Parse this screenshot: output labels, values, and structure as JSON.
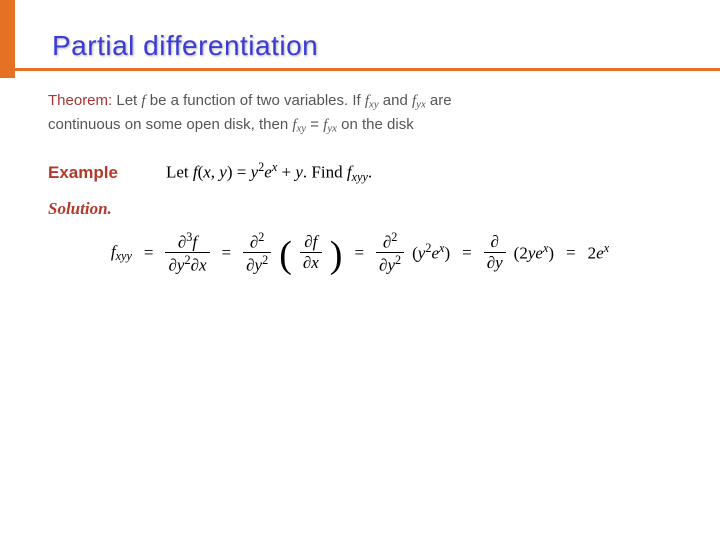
{
  "title": "Partial differentiation",
  "colors": {
    "title_color": "#3b3bd6",
    "accent_color": "#e57224",
    "label_color": "#b33a2a",
    "body_text": "#555555",
    "background": "#ffffff"
  },
  "typography": {
    "title_fontsize": 28,
    "body_fontsize": 15,
    "math_fontsize": 17,
    "title_font": "Arial",
    "math_font": "Times New Roman"
  },
  "theorem": {
    "label": "Theorem:",
    "part1": " Let ",
    "fn": "f",
    "part2": " be a function of two variables. If ",
    "fxy": "f",
    "fxy_sub": "xy",
    "part3": " and ",
    "fyx": "f",
    "fyx_sub": "yx",
    "part4": " are",
    "part5": "continuous on some open disk, then ",
    "eq_left": "f",
    "eq_left_sub": "xy",
    "eq_mid": " = ",
    "eq_right": "f",
    "eq_right_sub": "yx",
    "part6": " on the disk"
  },
  "example": {
    "label": "Example",
    "prefix": "Let ",
    "fn": "f",
    "args_open": "(",
    "var1": "x",
    "comma": ", ",
    "var2": "y",
    "args_close": ")",
    "eq": " = ",
    "rhs_y": "y",
    "rhs_y_exp": "2",
    "rhs_e": "e",
    "rhs_e_exp": "x",
    "plus": " + ",
    "rhs_y2": "y",
    "period": ". ",
    "find": "Find ",
    "target": "f",
    "target_sub": "xyy",
    "end": "."
  },
  "solution": {
    "label": "Solution.",
    "lhs": "f",
    "lhs_sub": "xyy",
    "eq": "=",
    "frac1_num_d": "∂",
    "frac1_num_exp": "3",
    "frac1_num_f": "f",
    "frac1_den_d1": "∂",
    "frac1_den_y": "y",
    "frac1_den_yexp": "2",
    "frac1_den_d2": "∂",
    "frac1_den_x": "x",
    "frac2_num_d": "∂",
    "frac2_num_exp": "2",
    "frac2_den_d": "∂",
    "frac2_den_y": "y",
    "frac2_den_yexp": "2",
    "inner_num_d": "∂",
    "inner_num_f": "f",
    "inner_den_d": "∂",
    "inner_den_x": "x",
    "term3_y": "y",
    "term3_yexp": "2",
    "term3_e": "e",
    "term3_eexp": "x",
    "frac4_num_d": "∂",
    "frac4_den_d": "∂",
    "frac4_den_y": "y",
    "term4_coef": "2",
    "term4_y": "y",
    "term4_e": "e",
    "term4_eexp": "x",
    "result_coef": "2",
    "result_e": "e",
    "result_eexp": "x"
  }
}
